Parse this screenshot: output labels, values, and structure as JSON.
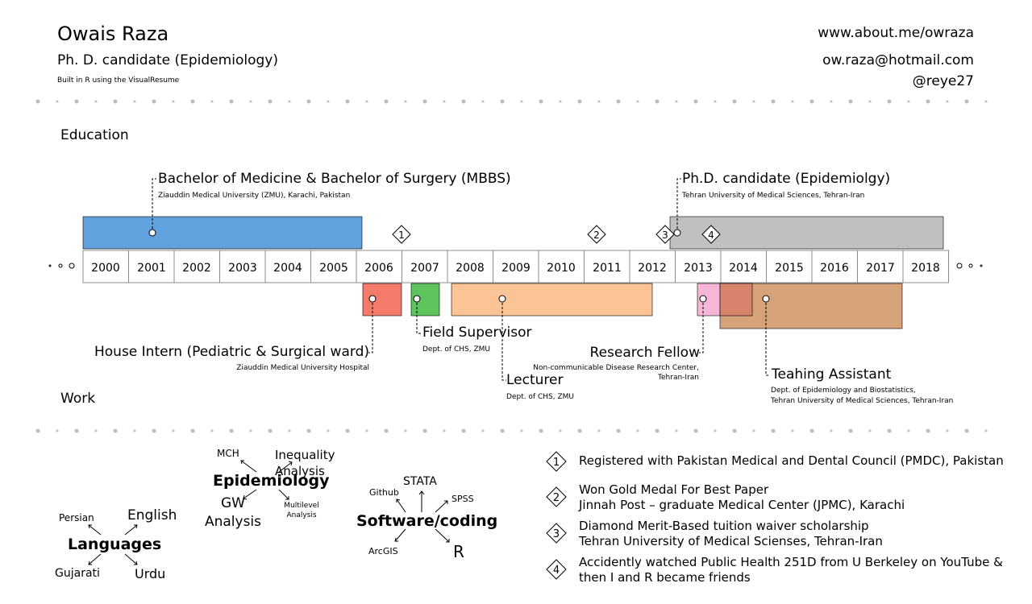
{
  "header": {
    "name": "Owais Raza",
    "title": "Ph. D. candidate (Epidemiology)",
    "built_with": "Built in R using the VisualResume",
    "website": "www.about.me/owraza",
    "email": "ow.raza@hotmail.com",
    "handle": "@reye27"
  },
  "sections": {
    "education": "Education",
    "work": "Work"
  },
  "years": [
    "2000",
    "2001",
    "2002",
    "2003",
    "2004",
    "2005",
    "2006",
    "2007",
    "2008",
    "2009",
    "2010",
    "2011",
    "2012",
    "2013",
    "2014",
    "2015",
    "2016",
    "2017",
    "2018"
  ],
  "education": [
    {
      "title": "Bachelor of Medicine & Bachelor of Surgery (MBBS)",
      "sub": "Ziauddin Medical University (ZMU), Karachi, Pakistan",
      "color": "#5FA2DD"
    },
    {
      "title": "Ph.D. candidate (Epidemiolgy)",
      "sub": "Tehran University of Medical Sciences, Tehran-Iran",
      "color": "#C0C0C0"
    }
  ],
  "work": [
    {
      "title": "House Intern (Pediatric & Surgical ward)",
      "sub": "Ziauddin Medical University Hospital",
      "color": "#F47A6B"
    },
    {
      "title": "Field Supervisor",
      "sub": "Dept. of CHS, ZMU",
      "color": "#5EC45E"
    },
    {
      "title": "Lecturer",
      "sub": "Dept. of CHS, ZMU",
      "color": "#FBC497"
    },
    {
      "title": "Research Fellow",
      "sub1": "Non-communicable Disease Research Center,",
      "sub2": "Tehran-Iran",
      "color": "#F8B6D6"
    },
    {
      "title": "Teahing Assistant",
      "sub1": "Dept. of Epidemiology and Biostatistics,",
      "sub2": "Tehran University of Medical Sciences, Tehran-Iran",
      "color": "#D39A6F"
    }
  ],
  "milestone_markers": [
    "1",
    "2",
    "3",
    "4"
  ],
  "skills": {
    "epidemiology": {
      "center": "Epidemiology",
      "items": [
        "MCH",
        "Inequality Analysis",
        "GW Analysis",
        "Multilevel Analysis"
      ]
    },
    "software": {
      "center": "Software/coding",
      "items": [
        "Github",
        "STATA",
        "SPSS",
        "ArcGIS",
        "R"
      ]
    },
    "languages": {
      "center": "Languages",
      "items": [
        "Persian",
        "English",
        "Gujarati",
        "Urdu"
      ]
    }
  },
  "milestones": [
    {
      "num": "1",
      "line1": "Registered with Pakistan Medical and Dental Council (PMDC), Pakistan"
    },
    {
      "num": "2",
      "line1": "Won Gold Medal For Best Paper",
      "line2": "Jinnah Post – graduate Medical Center (JPMC), Karachi"
    },
    {
      "num": "3",
      "line1": "Diamond Merit-Based tuition waiver scholarship",
      "line2": "Tehran University of Medical Scienses, Tehran-Iran"
    },
    {
      "num": "4",
      "line1": "Accidently watched Public Health 251D from U Berkeley on YouTube &",
      "line2": "then I and R became friends"
    }
  ]
}
